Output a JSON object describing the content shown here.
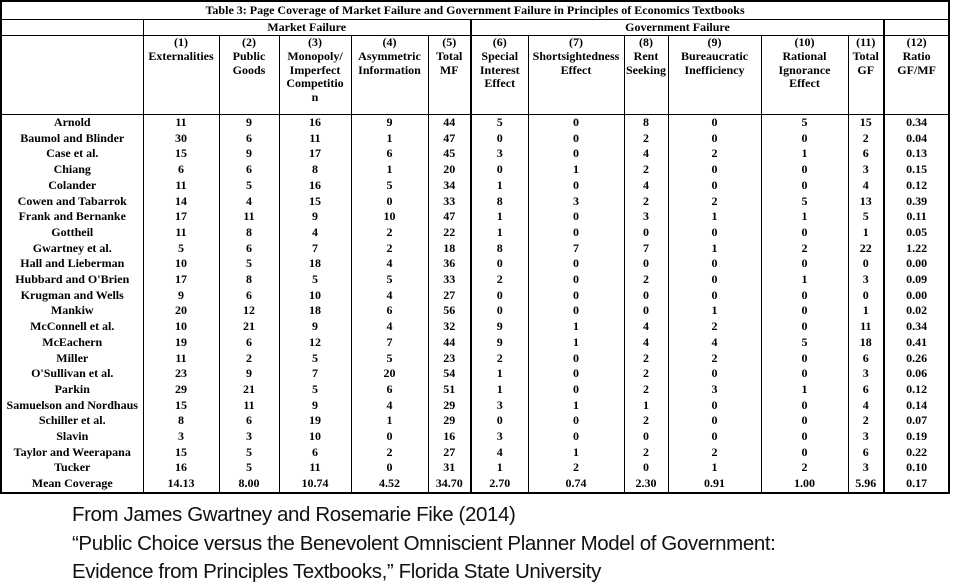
{
  "table": {
    "title": "Table 3: Page Coverage of Market Failure and Government Failure in Principles of Economics Textbooks",
    "group_headers": {
      "market_failure": "Market Failure",
      "government_failure": "Government Failure"
    },
    "column_headers": [
      "(1)\nExternalities",
      "(2)\nPublic\nGoods",
      "(3)\nMonopoly/\nImperfect\nCompetitio\nn",
      "(4)\nAsymmetric\nInformation",
      "(5)\nTotal\nMF",
      "(6)\nSpecial\nInterest\nEffect",
      "(7)\nShortsightedness\nEffect",
      "(8)\nRent\nSeeking",
      "(9)\nBureaucratic\nInefficiency",
      "(10)\nRational\nIgnorance\nEffect",
      "(11)\nTotal\nGF",
      "(12)\nRatio\nGF/MF"
    ],
    "rows": [
      {
        "name": "Arnold",
        "values": [
          "11",
          "9",
          "16",
          "9",
          "44",
          "5",
          "0",
          "8",
          "0",
          "5",
          "15",
          "0.34"
        ]
      },
      {
        "name": "Baumol and Blinder",
        "values": [
          "30",
          "6",
          "11",
          "1",
          "47",
          "0",
          "0",
          "2",
          "0",
          "0",
          "2",
          "0.04"
        ]
      },
      {
        "name": "Case et al.",
        "values": [
          "15",
          "9",
          "17",
          "6",
          "45",
          "3",
          "0",
          "4",
          "2",
          "1",
          "6",
          "0.13"
        ]
      },
      {
        "name": "Chiang",
        "values": [
          "6",
          "6",
          "8",
          "1",
          "20",
          "0",
          "1",
          "2",
          "0",
          "0",
          "3",
          "0.15"
        ]
      },
      {
        "name": "Colander",
        "values": [
          "11",
          "5",
          "16",
          "5",
          "34",
          "1",
          "0",
          "4",
          "0",
          "0",
          "4",
          "0.12"
        ]
      },
      {
        "name": "Cowen and Tabarrok",
        "values": [
          "14",
          "4",
          "15",
          "0",
          "33",
          "8",
          "3",
          "2",
          "2",
          "5",
          "13",
          "0.39"
        ]
      },
      {
        "name": "Frank and Bernanke",
        "values": [
          "17",
          "11",
          "9",
          "10",
          "47",
          "1",
          "0",
          "3",
          "1",
          "1",
          "5",
          "0.11"
        ]
      },
      {
        "name": "Gottheil",
        "values": [
          "11",
          "8",
          "4",
          "2",
          "22",
          "1",
          "0",
          "0",
          "0",
          "0",
          "1",
          "0.05"
        ]
      },
      {
        "name": "Gwartney et al.",
        "values": [
          "5",
          "6",
          "7",
          "2",
          "18",
          "8",
          "7",
          "7",
          "1",
          "2",
          "22",
          "1.22"
        ]
      },
      {
        "name": "Hall and Lieberman",
        "values": [
          "10",
          "5",
          "18",
          "4",
          "36",
          "0",
          "0",
          "0",
          "0",
          "0",
          "0",
          "0.00"
        ]
      },
      {
        "name": "Hubbard and O'Brien",
        "values": [
          "17",
          "8",
          "5",
          "5",
          "33",
          "2",
          "0",
          "2",
          "0",
          "1",
          "3",
          "0.09"
        ]
      },
      {
        "name": "Krugman and Wells",
        "values": [
          "9",
          "6",
          "10",
          "4",
          "27",
          "0",
          "0",
          "0",
          "0",
          "0",
          "0",
          "0.00"
        ]
      },
      {
        "name": "Mankiw",
        "values": [
          "20",
          "12",
          "18",
          "6",
          "56",
          "0",
          "0",
          "0",
          "1",
          "0",
          "1",
          "0.02"
        ]
      },
      {
        "name": "McConnell et al.",
        "values": [
          "10",
          "21",
          "9",
          "4",
          "32",
          "9",
          "1",
          "4",
          "2",
          "0",
          "11",
          "0.34"
        ]
      },
      {
        "name": "McEachern",
        "values": [
          "19",
          "6",
          "12",
          "7",
          "44",
          "9",
          "1",
          "4",
          "4",
          "5",
          "18",
          "0.41"
        ]
      },
      {
        "name": "Miller",
        "values": [
          "11",
          "2",
          "5",
          "5",
          "23",
          "2",
          "0",
          "2",
          "2",
          "0",
          "6",
          "0.26"
        ]
      },
      {
        "name": "O'Sullivan et al.",
        "values": [
          "23",
          "9",
          "7",
          "20",
          "54",
          "1",
          "0",
          "2",
          "0",
          "0",
          "3",
          "0.06"
        ]
      },
      {
        "name": "Parkin",
        "values": [
          "29",
          "21",
          "5",
          "6",
          "51",
          "1",
          "0",
          "2",
          "3",
          "1",
          "6",
          "0.12"
        ]
      },
      {
        "name": "Samuelson and Nordhaus",
        "values": [
          "15",
          "11",
          "9",
          "4",
          "29",
          "3",
          "1",
          "1",
          "0",
          "0",
          "4",
          "0.14"
        ]
      },
      {
        "name": "Schiller et al.",
        "values": [
          "8",
          "6",
          "19",
          "1",
          "29",
          "0",
          "0",
          "2",
          "0",
          "0",
          "2",
          "0.07"
        ]
      },
      {
        "name": "Slavin",
        "values": [
          "3",
          "3",
          "10",
          "0",
          "16",
          "3",
          "0",
          "0",
          "0",
          "0",
          "3",
          "0.19"
        ]
      },
      {
        "name": "Taylor and Weerapana",
        "values": [
          "15",
          "5",
          "6",
          "2",
          "27",
          "4",
          "1",
          "2",
          "2",
          "0",
          "6",
          "0.22"
        ]
      },
      {
        "name": "Tucker",
        "values": [
          "16",
          "5",
          "11",
          "0",
          "31",
          "1",
          "2",
          "0",
          "1",
          "2",
          "3",
          "0.10"
        ]
      },
      {
        "name": "Mean Coverage",
        "values": [
          "14.13",
          "8.00",
          "10.74",
          "4.52",
          "34.70",
          "2.70",
          "0.74",
          "2.30",
          "0.91",
          "1.00",
          "5.96",
          "0.17"
        ]
      }
    ]
  },
  "footer": {
    "line1": "From James Gwartney and Rosemarie Fike (2014)",
    "line2": "“Public Choice versus the Benevolent Omniscient Planner Model of Government:",
    "line3": "Evidence from Principles Textbooks,” Florida State University"
  }
}
